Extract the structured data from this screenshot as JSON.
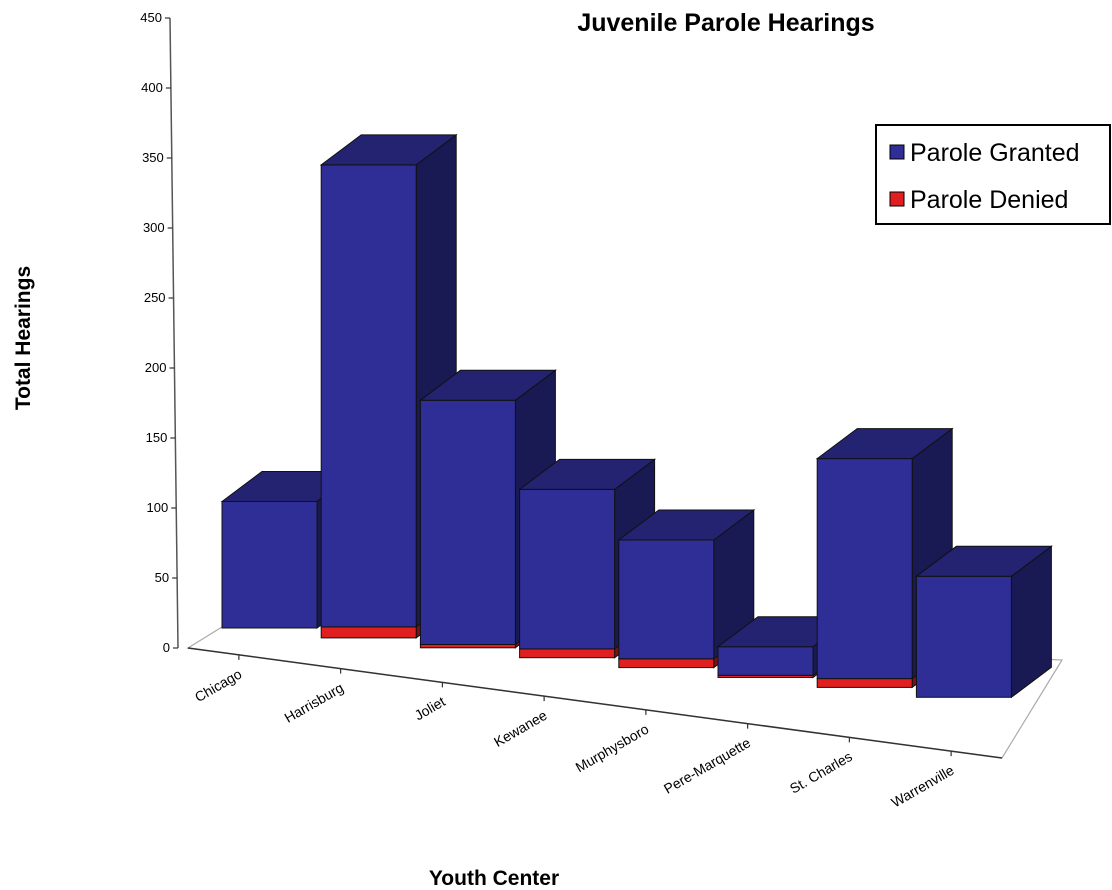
{
  "chart_data": {
    "type": "bar",
    "stacked": true,
    "three_d": true,
    "title": "Juvenile Parole Hearings",
    "xlabel": "Youth Center",
    "ylabel": "Total Hearings",
    "ylim": [
      0,
      450
    ],
    "yticks": [
      0,
      50,
      100,
      150,
      200,
      250,
      300,
      350,
      400,
      450
    ],
    "categories": [
      "Chicago",
      "Harrisburg",
      "Joliet",
      "Kewanee",
      "Murphysboro",
      "Pere-Marquette",
      "St. Charles",
      "Warrenville"
    ],
    "series": [
      {
        "name": "Parole Denied",
        "color": "#e02020",
        "values": [
          0,
          10,
          3,
          8,
          8,
          2,
          8,
          0
        ]
      },
      {
        "name": "Parole Granted",
        "color": "#2e2e96",
        "values": [
          115,
          420,
          222,
          145,
          108,
          26,
          200,
          110
        ]
      }
    ],
    "legend_position": "top-right",
    "grid": false
  }
}
